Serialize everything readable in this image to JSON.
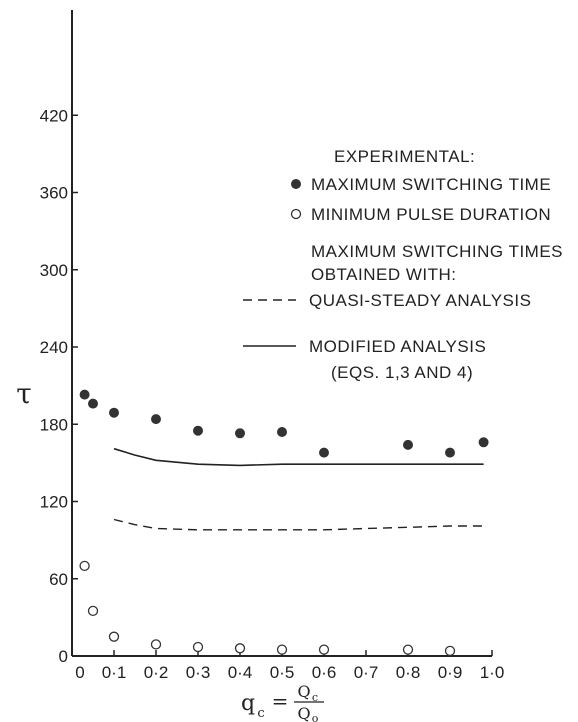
{
  "chart_data": {
    "type": "scatter",
    "title": "",
    "ylabel": "τ",
    "xlabel": {
      "main": "q",
      "sub": "c",
      "equals": "=",
      "numerator": "Q",
      "numerator_sub": "c",
      "denominator": "Q",
      "denominator_sub": "o"
    },
    "xlim": [
      0,
      1.0
    ],
    "ylim": [
      0,
      480
    ],
    "x_ticks": [
      {
        "value": 0.0,
        "label": "0"
      },
      {
        "value": 0.1,
        "label": "0·1"
      },
      {
        "value": 0.2,
        "label": "0·2"
      },
      {
        "value": 0.3,
        "label": "0·3"
      },
      {
        "value": 0.4,
        "label": "0·4"
      },
      {
        "value": 0.5,
        "label": "0·5"
      },
      {
        "value": 0.6,
        "label": "0·6"
      },
      {
        "value": 0.7,
        "label": "0·7"
      },
      {
        "value": 0.8,
        "label": "0·8"
      },
      {
        "value": 0.9,
        "label": "0·9"
      },
      {
        "value": 1.0,
        "label": "1·0"
      }
    ],
    "y_ticks": [
      {
        "value": 0,
        "label": "0"
      },
      {
        "value": 60,
        "label": "60"
      },
      {
        "value": 120,
        "label": "120"
      },
      {
        "value": 180,
        "label": "180"
      },
      {
        "value": 240,
        "label": "240"
      },
      {
        "value": 300,
        "label": "300"
      },
      {
        "value": 360,
        "label": "360"
      },
      {
        "value": 420,
        "label": "420"
      }
    ],
    "legend": {
      "experimental_heading": "EXPERIMENTAL:",
      "max_switching": "MAXIMUM SWITCHING TIME",
      "min_pulse": "MINIMUM PULSE DURATION",
      "obtained_line1": "MAXIMUM SWITCHING TIMES",
      "obtained_line2": "OBTAINED WITH:",
      "quasi_steady": "QUASI-STEADY ANALYSIS",
      "modified_line1": "MODIFIED ANALYSIS",
      "modified_line2": "(EQS. 1,3 AND 4)"
    },
    "series": [
      {
        "name": "MAXIMUM SWITCHING TIME",
        "kind": "points",
        "marker": "filled-circle",
        "points": [
          [
            0.03,
            203
          ],
          [
            0.05,
            196
          ],
          [
            0.1,
            189
          ],
          [
            0.2,
            184
          ],
          [
            0.3,
            175
          ],
          [
            0.4,
            173
          ],
          [
            0.5,
            174
          ],
          [
            0.6,
            158
          ],
          [
            0.8,
            164
          ],
          [
            0.9,
            158
          ],
          [
            0.98,
            166
          ]
        ]
      },
      {
        "name": "MINIMUM PULSE DURATION",
        "kind": "points",
        "marker": "open-circle",
        "points": [
          [
            0.03,
            70
          ],
          [
            0.05,
            35
          ],
          [
            0.1,
            15
          ],
          [
            0.2,
            9
          ],
          [
            0.3,
            7
          ],
          [
            0.4,
            6
          ],
          [
            0.5,
            5
          ],
          [
            0.6,
            5
          ],
          [
            0.8,
            5
          ],
          [
            0.9,
            4
          ]
        ]
      },
      {
        "name": "QUASI-STEADY ANALYSIS",
        "kind": "line",
        "style": "dashed",
        "points": [
          [
            0.1,
            106
          ],
          [
            0.15,
            102
          ],
          [
            0.2,
            99
          ],
          [
            0.3,
            98
          ],
          [
            0.4,
            98
          ],
          [
            0.5,
            98
          ],
          [
            0.6,
            98
          ],
          [
            0.7,
            99
          ],
          [
            0.8,
            100
          ],
          [
            0.9,
            101
          ],
          [
            0.98,
            101
          ]
        ]
      },
      {
        "name": "MODIFIED ANALYSIS (EQS. 1,3 AND 4)",
        "kind": "line",
        "style": "solid",
        "points": [
          [
            0.1,
            161
          ],
          [
            0.15,
            156
          ],
          [
            0.2,
            152
          ],
          [
            0.3,
            149
          ],
          [
            0.4,
            148
          ],
          [
            0.5,
            149
          ],
          [
            0.6,
            149
          ],
          [
            0.7,
            149
          ],
          [
            0.8,
            149
          ],
          [
            0.9,
            149
          ],
          [
            0.98,
            149
          ]
        ]
      }
    ]
  }
}
